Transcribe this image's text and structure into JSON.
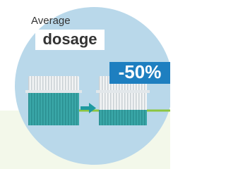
{
  "label": {
    "line1": "Average",
    "line2": "dosage"
  },
  "badge": "-50%"
}
